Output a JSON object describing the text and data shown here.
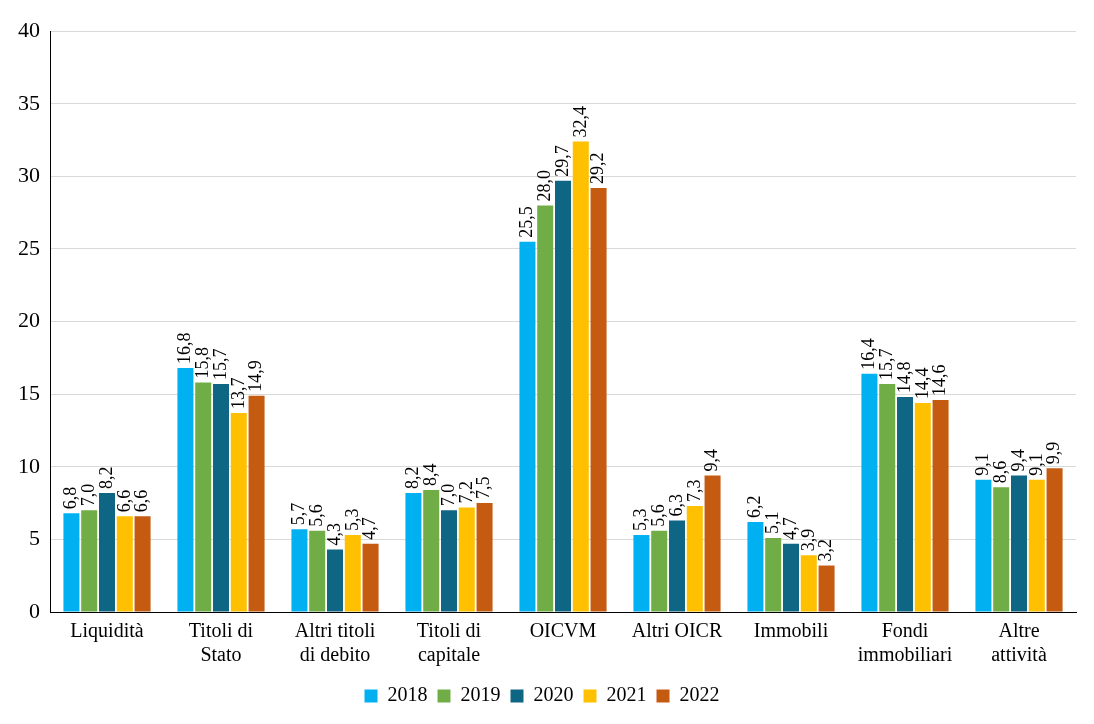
{
  "chart_data": {
    "type": "bar",
    "categories": [
      "Liquidità",
      "Titoli di Stato",
      "Altri titoli di debito",
      "Titoli di capitale",
      "OICVM",
      "Altri OICR",
      "Immobili",
      "Fondi immobiliari",
      "Altre attività"
    ],
    "series": [
      {
        "name": "2018",
        "color": "#00b0f0",
        "values": [
          6.8,
          16.8,
          5.7,
          8.2,
          25.5,
          5.3,
          6.2,
          16.4,
          9.1
        ],
        "value_labels": [
          "6,8",
          "16,8",
          "5,7",
          "8,2",
          "25,5",
          "5,3",
          "6,2",
          "16,4",
          "9,1"
        ]
      },
      {
        "name": "2019",
        "color": "#70ad47",
        "values": [
          7.0,
          15.8,
          5.6,
          8.4,
          28.0,
          5.6,
          5.1,
          15.7,
          8.6
        ],
        "value_labels": [
          "7,0",
          "15,8",
          "5,6",
          "8,4",
          "28,0",
          "5,6",
          "5,1",
          "15,7",
          "8,6"
        ]
      },
      {
        "name": "2020",
        "color": "#0e6584",
        "values": [
          8.2,
          15.7,
          4.3,
          7.0,
          29.7,
          6.3,
          4.7,
          14.8,
          9.4
        ],
        "value_labels": [
          "8,2",
          "15,7",
          "4,3",
          "7,0",
          "29,7",
          "6,3",
          "4,7",
          "14,8",
          "9,4"
        ]
      },
      {
        "name": "2021",
        "color": "#ffc000",
        "values": [
          6.6,
          13.7,
          5.3,
          7.2,
          32.4,
          7.3,
          3.9,
          14.4,
          9.1
        ],
        "value_labels": [
          "6,6",
          "13,7",
          "5,3",
          "7,2",
          "32,4",
          "7,3",
          "3,9",
          "14,4",
          "9,1"
        ]
      },
      {
        "name": "2022",
        "color": "#c55a11",
        "values": [
          6.6,
          14.9,
          4.7,
          7.5,
          29.2,
          9.4,
          3.2,
          14.6,
          9.9
        ],
        "value_labels": [
          "6,6",
          "14,9",
          "4,7",
          "7,5",
          "29,2",
          "9,4",
          "3,2",
          "14,6",
          "9,9"
        ]
      }
    ],
    "ylim": [
      0,
      40
    ],
    "yticks": [
      0,
      5,
      10,
      15,
      20,
      25,
      30,
      35,
      40
    ],
    "grid": "y",
    "legend": "bottom"
  }
}
